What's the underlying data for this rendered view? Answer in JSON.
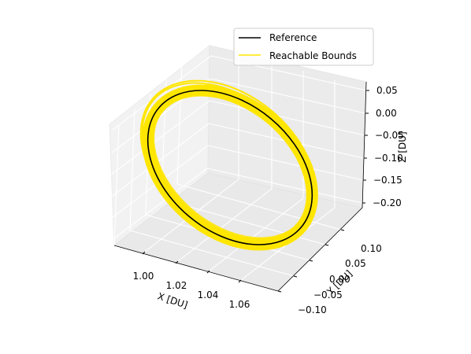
{
  "chart_data": {
    "type": "line",
    "projection": "3d",
    "title": "",
    "xlabel": "X [DU]",
    "ylabel": "Y [DU]",
    "zlabel": "Z [DU]",
    "xlim": [
      0.985,
      1.075
    ],
    "ylim": [
      -0.11,
      0.12
    ],
    "zlim": [
      -0.21,
      0.06
    ],
    "xticks": [
      "1.00",
      "1.02",
      "1.04",
      "1.06"
    ],
    "yticks": [
      "−0.10",
      "−0.05",
      "0.00",
      "0.05",
      "0.10"
    ],
    "zticks": [
      "−0.20",
      "−0.15",
      "−0.10",
      "−0.05",
      "0.00",
      "0.05"
    ],
    "grid": true,
    "legend_position": "top-right",
    "series": [
      {
        "name": "Reference",
        "color": "#000000",
        "style": "thin-line"
      },
      {
        "name": "Reachable Bounds",
        "color": "#ffe600",
        "style": "thick-band"
      }
    ]
  }
}
